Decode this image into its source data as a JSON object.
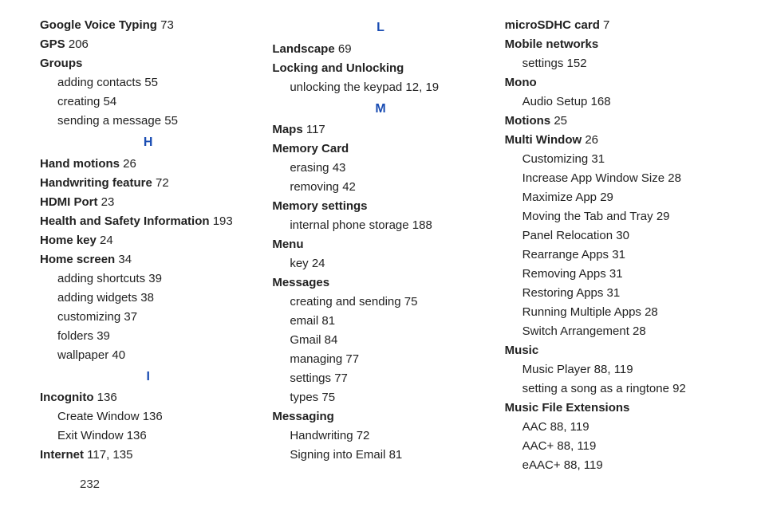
{
  "page_number": "232",
  "columns": [
    {
      "items": [
        {
          "type": "entry",
          "term": "Google Voice Typing",
          "refs": "73"
        },
        {
          "type": "entry",
          "term": "GPS",
          "refs": "206"
        },
        {
          "type": "entry",
          "term": "Groups",
          "refs": ""
        },
        {
          "type": "sub",
          "text": "adding contacts",
          "refs": "55"
        },
        {
          "type": "sub",
          "text": "creating",
          "refs": "54"
        },
        {
          "type": "sub",
          "text": "sending a message",
          "refs": "55"
        },
        {
          "type": "letter",
          "text": "H"
        },
        {
          "type": "entry",
          "term": "Hand motions",
          "refs": "26"
        },
        {
          "type": "entry",
          "term": "Handwriting feature",
          "refs": "72"
        },
        {
          "type": "entry",
          "term": "HDMI Port",
          "refs": "23"
        },
        {
          "type": "entry",
          "term": "Health and Safety Information",
          "refs": "193"
        },
        {
          "type": "entry",
          "term": "Home key",
          "refs": "24"
        },
        {
          "type": "entry",
          "term": "Home screen",
          "refs": "34"
        },
        {
          "type": "sub",
          "text": "adding shortcuts",
          "refs": "39"
        },
        {
          "type": "sub",
          "text": "adding widgets",
          "refs": "38"
        },
        {
          "type": "sub",
          "text": "customizing",
          "refs": "37"
        },
        {
          "type": "sub",
          "text": "folders",
          "refs": "39"
        },
        {
          "type": "sub",
          "text": "wallpaper",
          "refs": "40"
        },
        {
          "type": "letter",
          "text": "I"
        },
        {
          "type": "entry",
          "term": "Incognito",
          "refs": "136"
        },
        {
          "type": "sub",
          "text": "Create Window",
          "refs": "136"
        },
        {
          "type": "sub",
          "text": "Exit Window",
          "refs": "136"
        },
        {
          "type": "entry",
          "term": "Internet",
          "refs": "117, 135"
        }
      ]
    },
    {
      "items": [
        {
          "type": "letter",
          "text": "L"
        },
        {
          "type": "entry",
          "term": "Landscape",
          "refs": "69"
        },
        {
          "type": "entry",
          "term": "Locking and Unlocking",
          "refs": ""
        },
        {
          "type": "sub",
          "text": "unlocking the keypad",
          "refs": "12, 19"
        },
        {
          "type": "letter",
          "text": "M"
        },
        {
          "type": "entry",
          "term": "Maps",
          "refs": "117"
        },
        {
          "type": "entry",
          "term": "Memory Card",
          "refs": ""
        },
        {
          "type": "sub",
          "text": "erasing",
          "refs": "43"
        },
        {
          "type": "sub",
          "text": "removing",
          "refs": "42"
        },
        {
          "type": "entry",
          "term": "Memory settings",
          "refs": ""
        },
        {
          "type": "sub",
          "text": "internal phone storage",
          "refs": "188"
        },
        {
          "type": "entry",
          "term": "Menu",
          "refs": ""
        },
        {
          "type": "sub",
          "text": "key",
          "refs": "24"
        },
        {
          "type": "entry",
          "term": "Messages",
          "refs": ""
        },
        {
          "type": "sub",
          "text": "creating and sending",
          "refs": "75"
        },
        {
          "type": "sub",
          "text": "email",
          "refs": "81"
        },
        {
          "type": "sub",
          "text": "Gmail",
          "refs": "84"
        },
        {
          "type": "sub",
          "text": "managing",
          "refs": "77"
        },
        {
          "type": "sub",
          "text": "settings",
          "refs": "77"
        },
        {
          "type": "sub",
          "text": "types",
          "refs": "75"
        },
        {
          "type": "entry",
          "term": "Messaging",
          "refs": ""
        },
        {
          "type": "sub",
          "text": "Handwriting",
          "refs": "72"
        },
        {
          "type": "sub",
          "text": "Signing into Email",
          "refs": "81"
        }
      ]
    },
    {
      "items": [
        {
          "type": "entry",
          "term": "microSDHC card",
          "refs": "7"
        },
        {
          "type": "entry",
          "term": "Mobile networks",
          "refs": ""
        },
        {
          "type": "sub",
          "text": "settings",
          "refs": "152"
        },
        {
          "type": "entry",
          "term": "Mono",
          "refs": ""
        },
        {
          "type": "sub",
          "text": "Audio Setup",
          "refs": "168"
        },
        {
          "type": "entry",
          "term": "Motions",
          "refs": "25"
        },
        {
          "type": "entry",
          "term": "Multi Window",
          "refs": "26"
        },
        {
          "type": "sub",
          "text": "Customizing",
          "refs": "31"
        },
        {
          "type": "sub",
          "text": "Increase App Window Size",
          "refs": "28"
        },
        {
          "type": "sub",
          "text": "Maximize App",
          "refs": "29"
        },
        {
          "type": "sub",
          "text": "Moving the Tab and Tray",
          "refs": "29"
        },
        {
          "type": "sub",
          "text": "Panel Relocation",
          "refs": "30"
        },
        {
          "type": "sub",
          "text": "Rearrange Apps",
          "refs": "31"
        },
        {
          "type": "sub",
          "text": "Removing Apps",
          "refs": "31"
        },
        {
          "type": "sub",
          "text": "Restoring Apps",
          "refs": "31"
        },
        {
          "type": "sub",
          "text": "Running Multiple Apps",
          "refs": "28"
        },
        {
          "type": "sub",
          "text": "Switch Arrangement",
          "refs": "28"
        },
        {
          "type": "entry",
          "term": "Music",
          "refs": ""
        },
        {
          "type": "sub",
          "text": "Music Player",
          "refs": "88, 119"
        },
        {
          "type": "sub",
          "text": "setting a song as a ringtone",
          "refs": "92"
        },
        {
          "type": "entry",
          "term": "Music File Extensions",
          "refs": ""
        },
        {
          "type": "sub",
          "text": "AAC",
          "refs": "88, 119"
        },
        {
          "type": "sub",
          "text": "AAC+",
          "refs": "88, 119"
        },
        {
          "type": "sub",
          "text": "eAAC+",
          "refs": "88, 119"
        }
      ]
    }
  ]
}
